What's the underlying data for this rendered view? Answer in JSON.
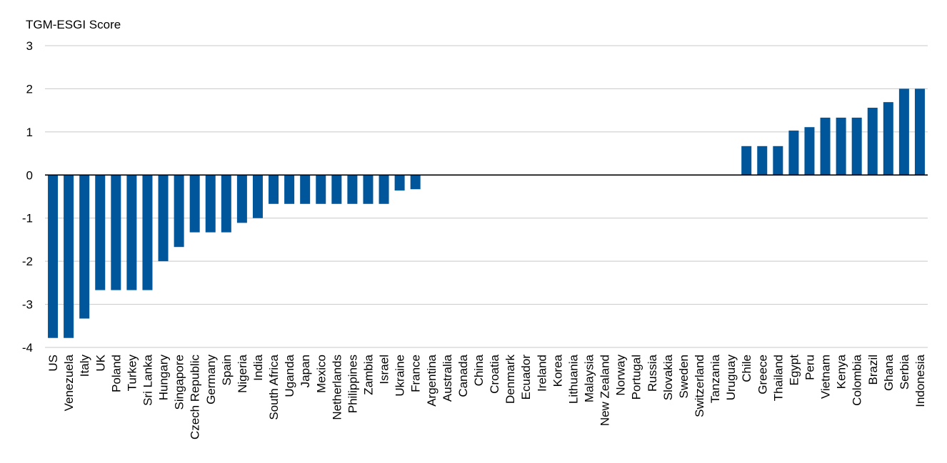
{
  "chart_data": {
    "type": "bar",
    "title": "",
    "xlabel": "",
    "ylabel": "TGM-ESGI Score",
    "ylim": [
      -4,
      3
    ],
    "yticks": [
      3,
      2,
      1,
      0,
      -1,
      -2,
      -3,
      -4
    ],
    "grid": true,
    "bar_color": "#00569b",
    "categories": [
      "US",
      "Venezuela",
      "Italy",
      "UK",
      "Poland",
      "Turkey",
      "Sri Lanka",
      "Hungary",
      "Singapore",
      "Czech Republic",
      "Germany",
      "Spain",
      "Nigeria",
      "India",
      "South Africa",
      "Uganda",
      "Japan",
      "Mexico",
      "Netherlands",
      "Philippines",
      "Zambia",
      "Israel",
      "Ukraine",
      "France",
      "Argentina",
      "Australia",
      "Canada",
      "China",
      "Croatia",
      "Denmark",
      "Ecuador",
      "Ireland",
      "Korea",
      "Lithuania",
      "Malaysia",
      "New Zealand",
      "Norway",
      "Portugal",
      "Russia",
      "Slovakia",
      "Sweden",
      "Switzerland",
      "Tanzania",
      "Uruguay",
      "Chile",
      "Greece",
      "Thailand",
      "Egypt",
      "Peru",
      "Vietnam",
      "Kenya",
      "Colombia",
      "Brazil",
      "Ghana",
      "Serbia",
      "Indonesia"
    ],
    "values": [
      -3.78,
      -3.78,
      -3.33,
      -2.67,
      -2.67,
      -2.67,
      -2.67,
      -2.0,
      -1.67,
      -1.33,
      -1.33,
      -1.33,
      -1.11,
      -1.0,
      -0.67,
      -0.67,
      -0.67,
      -0.67,
      -0.67,
      -0.67,
      -0.67,
      -0.67,
      -0.36,
      -0.33,
      0,
      0,
      0,
      0,
      0,
      0,
      0,
      0,
      0,
      0,
      0,
      0,
      0,
      0,
      0,
      0,
      0,
      0,
      0,
      0,
      0.67,
      0.67,
      0.67,
      1.03,
      1.11,
      1.33,
      1.33,
      1.33,
      1.56,
      1.69,
      2.0,
      2.0
    ]
  }
}
